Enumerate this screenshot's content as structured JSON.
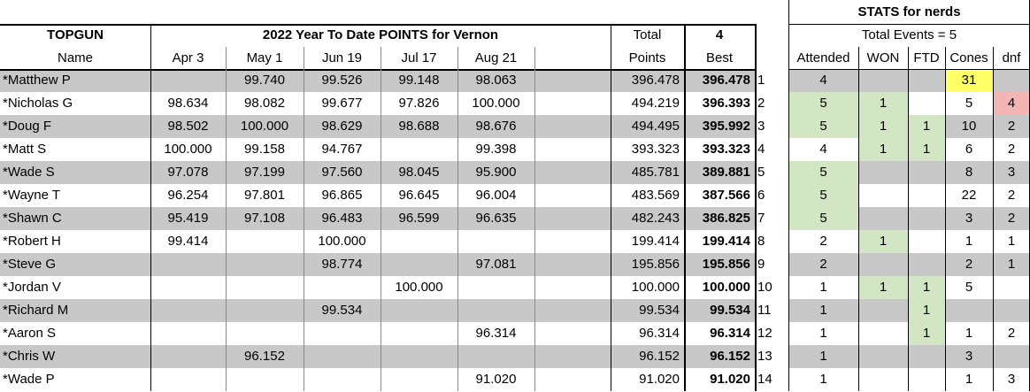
{
  "header": {
    "topgun": "TOPGUN",
    "name": "Name",
    "title": "2022 Year To Date POINTS for Vernon",
    "events": [
      "Apr 3",
      "May 1",
      "Jun 19",
      "Jul 17",
      "Aug 21",
      ""
    ],
    "total_top": "Total",
    "total_bottom": "Points",
    "best_top": "4",
    "best_bottom": "Best"
  },
  "stats": {
    "title": "STATS for nerds",
    "subtitle": "Total Events = 5",
    "columns": [
      "Attended",
      "WON",
      "FTD",
      "Cones",
      "dnf"
    ]
  },
  "colors": {
    "gray_row": "#c8c8c8",
    "green": "#d3e6c4",
    "yellow": "#ffff66",
    "red": "#f4b5b5"
  },
  "rows": [
    {
      "name": "*Matthew P",
      "scores": [
        "",
        "99.740",
        "99.526",
        "99.148",
        "98.063",
        ""
      ],
      "total": "396.478",
      "best": "396.478",
      "rank": "1",
      "attended": "4",
      "won": "",
      "ftd": "",
      "cones": "31",
      "dnf": ""
    },
    {
      "name": "*Nicholas G",
      "scores": [
        "98.634",
        "98.082",
        "99.677",
        "97.826",
        "100.000",
        ""
      ],
      "total": "494.219",
      "best": "396.393",
      "rank": "2",
      "attended": "5",
      "won": "1",
      "ftd": "",
      "cones": "5",
      "dnf": "4"
    },
    {
      "name": "*Doug  F",
      "scores": [
        "98.502",
        "100.000",
        "98.629",
        "98.688",
        "98.676",
        ""
      ],
      "total": "494.495",
      "best": "395.992",
      "rank": "3",
      "attended": "5",
      "won": "1",
      "ftd": "1",
      "cones": "10",
      "dnf": "2"
    },
    {
      "name": "*Matt S",
      "scores": [
        "100.000",
        "99.158",
        "94.767",
        "",
        "99.398",
        ""
      ],
      "total": "393.323",
      "best": "393.323",
      "rank": "4",
      "attended": "4",
      "won": "1",
      "ftd": "1",
      "cones": "6",
      "dnf": "2"
    },
    {
      "name": "*Wade S",
      "scores": [
        "97.078",
        "97.199",
        "97.560",
        "98.045",
        "95.900",
        ""
      ],
      "total": "485.781",
      "best": "389.881",
      "rank": "5",
      "attended": "5",
      "won": "",
      "ftd": "",
      "cones": "8",
      "dnf": "3"
    },
    {
      "name": "*Wayne T",
      "scores": [
        "96.254",
        "97.801",
        "96.865",
        "96.645",
        "96.004",
        ""
      ],
      "total": "483.569",
      "best": "387.566",
      "rank": "6",
      "attended": "5",
      "won": "",
      "ftd": "",
      "cones": "22",
      "dnf": "2"
    },
    {
      "name": "*Shawn C",
      "scores": [
        "95.419",
        "97.108",
        "96.483",
        "96.599",
        "96.635",
        ""
      ],
      "total": "482.243",
      "best": "386.825",
      "rank": "7",
      "attended": "5",
      "won": "",
      "ftd": "",
      "cones": "3",
      "dnf": "2"
    },
    {
      "name": "*Robert H",
      "scores": [
        "99.414",
        "",
        "100.000",
        "",
        "",
        ""
      ],
      "total": "199.414",
      "best": "199.414",
      "rank": "8",
      "attended": "2",
      "won": "1",
      "ftd": "",
      "cones": "1",
      "dnf": "1"
    },
    {
      "name": "*Steve G",
      "scores": [
        "",
        "",
        "98.774",
        "",
        "97.081",
        ""
      ],
      "total": "195.856",
      "best": "195.856",
      "rank": "9",
      "attended": "2",
      "won": "",
      "ftd": "",
      "cones": "2",
      "dnf": "1"
    },
    {
      "name": "*Jordan V",
      "scores": [
        "",
        "",
        "",
        "100.000",
        "",
        ""
      ],
      "total": "100.000",
      "best": "100.000",
      "rank": "10",
      "attended": "1",
      "won": "1",
      "ftd": "1",
      "cones": "5",
      "dnf": ""
    },
    {
      "name": "*Richard M",
      "scores": [
        "",
        "",
        "99.534",
        "",
        "",
        ""
      ],
      "total": "99.534",
      "best": "99.534",
      "rank": "11",
      "attended": "1",
      "won": "",
      "ftd": "1",
      "cones": "",
      "dnf": ""
    },
    {
      "name": "*Aaron S",
      "scores": [
        "",
        "",
        "",
        "",
        "96.314",
        ""
      ],
      "total": "96.314",
      "best": "96.314",
      "rank": "12",
      "attended": "1",
      "won": "",
      "ftd": "1",
      "cones": "1",
      "dnf": "2"
    },
    {
      "name": "*Chris W",
      "scores": [
        "",
        "96.152",
        "",
        "",
        "",
        ""
      ],
      "total": "96.152",
      "best": "96.152",
      "rank": "13",
      "attended": "1",
      "won": "",
      "ftd": "",
      "cones": "3",
      "dnf": ""
    },
    {
      "name": "*Wade P",
      "scores": [
        "",
        "",
        "",
        "",
        "91.020",
        ""
      ],
      "total": "91.020",
      "best": "91.020",
      "rank": "14",
      "attended": "1",
      "won": "",
      "ftd": "",
      "cones": "1",
      "dnf": "3"
    }
  ]
}
